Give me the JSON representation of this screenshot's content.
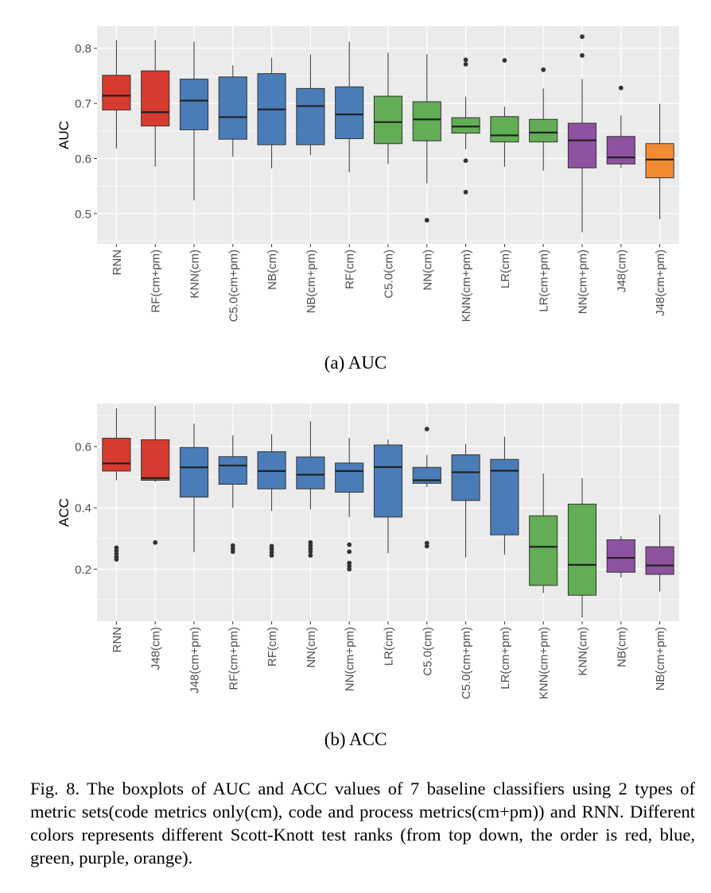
{
  "chart_data": [
    {
      "type": "boxplot",
      "ylabel": "AUC",
      "ylim": [
        0.445,
        0.84
      ],
      "yticks": [
        0.5,
        0.6,
        0.7,
        0.8
      ],
      "ytick_labels": [
        "0.5",
        "0.6",
        "0.7",
        "0.8"
      ],
      "grid": true,
      "categories": [
        "RNN",
        "RF(cm+pm)",
        "KNN(cm)",
        "C5.0(cm+pm)",
        "NB(cm)",
        "NB(cm+pm)",
        "RF(cm)",
        "C5.0(cm)",
        "NN(cm)",
        "KNN(cm+pm)",
        "LR(cm)",
        "LR(cm+pm)",
        "NN(cm+pm)",
        "J48(cm)",
        "J48(cm+pm)"
      ],
      "boxes": [
        {
          "min": 0.618,
          "q1": 0.688,
          "median": 0.714,
          "q3": 0.751,
          "max": 0.815,
          "outliers": [],
          "rank": "red"
        },
        {
          "min": 0.585,
          "q1": 0.659,
          "median": 0.684,
          "q3": 0.759,
          "max": 0.815,
          "outliers": [],
          "rank": "red"
        },
        {
          "min": 0.524,
          "q1": 0.652,
          "median": 0.705,
          "q3": 0.744,
          "max": 0.812,
          "outliers": [],
          "rank": "blue"
        },
        {
          "min": 0.603,
          "q1": 0.635,
          "median": 0.675,
          "q3": 0.748,
          "max": 0.769,
          "outliers": [],
          "rank": "blue"
        },
        {
          "min": 0.582,
          "q1": 0.625,
          "median": 0.689,
          "q3": 0.754,
          "max": 0.783,
          "outliers": [],
          "rank": "blue"
        },
        {
          "min": 0.606,
          "q1": 0.625,
          "median": 0.695,
          "q3": 0.727,
          "max": 0.789,
          "outliers": [],
          "rank": "blue"
        },
        {
          "min": 0.575,
          "q1": 0.636,
          "median": 0.68,
          "q3": 0.73,
          "max": 0.812,
          "outliers": [],
          "rank": "blue"
        },
        {
          "min": 0.59,
          "q1": 0.627,
          "median": 0.666,
          "q3": 0.713,
          "max": 0.792,
          "outliers": [],
          "rank": "green"
        },
        {
          "min": 0.555,
          "q1": 0.632,
          "median": 0.671,
          "q3": 0.703,
          "max": 0.789,
          "outliers": [
            0.488
          ],
          "rank": "green"
        },
        {
          "min": 0.617,
          "q1": 0.646,
          "median": 0.658,
          "q3": 0.674,
          "max": 0.712,
          "outliers": [
            0.779,
            0.771,
            0.596,
            0.539
          ],
          "rank": "green"
        },
        {
          "min": 0.585,
          "q1": 0.63,
          "median": 0.642,
          "q3": 0.676,
          "max": 0.694,
          "outliers": [
            0.778
          ],
          "rank": "green"
        },
        {
          "min": 0.578,
          "q1": 0.63,
          "median": 0.647,
          "q3": 0.671,
          "max": 0.727,
          "outliers": [
            0.761
          ],
          "rank": "green"
        },
        {
          "min": 0.466,
          "q1": 0.583,
          "median": 0.633,
          "q3": 0.664,
          "max": 0.744,
          "outliers": [
            0.821,
            0.787
          ],
          "rank": "purple"
        },
        {
          "min": 0.583,
          "q1": 0.59,
          "median": 0.602,
          "q3": 0.64,
          "max": 0.678,
          "outliers": [
            0.728
          ],
          "rank": "purple"
        },
        {
          "min": 0.49,
          "q1": 0.565,
          "median": 0.598,
          "q3": 0.627,
          "max": 0.699,
          "outliers": [],
          "rank": "orange"
        }
      ]
    },
    {
      "type": "boxplot",
      "ylabel": "ACC",
      "ylim": [
        0.03,
        0.74
      ],
      "yticks": [
        0.2,
        0.4,
        0.6
      ],
      "ytick_labels": [
        "0.2",
        "0.4",
        "0.6"
      ],
      "grid": true,
      "categories": [
        "RNN",
        "J48(cm)",
        "J48(cm+pm)",
        "RF(cm+pm)",
        "RF(cm)",
        "NN(cm)",
        "NN(cm+pm)",
        "LR(cm)",
        "C5.0(cm)",
        "C5.0(cm+pm)",
        "LR(cm+pm)",
        "KNN(cm+pm)",
        "KNN(cm)",
        "NB(cm)",
        "NB(cm+pm)"
      ],
      "boxes": [
        {
          "min": 0.49,
          "q1": 0.52,
          "median": 0.545,
          "q3": 0.627,
          "max": 0.725,
          "outliers": [
            0.27,
            0.26,
            0.25,
            0.24,
            0.232
          ],
          "rank": "red"
        },
        {
          "min": 0.485,
          "q1": 0.49,
          "median": 0.497,
          "q3": 0.622,
          "max": 0.732,
          "outliers": [
            0.287
          ],
          "rank": "red"
        },
        {
          "min": 0.255,
          "q1": 0.435,
          "median": 0.532,
          "q3": 0.597,
          "max": 0.675,
          "outliers": [],
          "rank": "blue"
        },
        {
          "min": 0.4,
          "q1": 0.477,
          "median": 0.538,
          "q3": 0.567,
          "max": 0.636,
          "outliers": [
            0.277,
            0.267,
            0.257
          ],
          "rank": "blue"
        },
        {
          "min": 0.39,
          "q1": 0.462,
          "median": 0.52,
          "q3": 0.583,
          "max": 0.64,
          "outliers": [
            0.275,
            0.265,
            0.255,
            0.245
          ],
          "rank": "blue"
        },
        {
          "min": 0.395,
          "q1": 0.462,
          "median": 0.508,
          "q3": 0.566,
          "max": 0.682,
          "outliers": [
            0.287,
            0.277,
            0.267,
            0.257,
            0.245
          ],
          "rank": "blue"
        },
        {
          "min": 0.37,
          "q1": 0.451,
          "median": 0.52,
          "q3": 0.546,
          "max": 0.628,
          "outliers": [
            0.28,
            0.257,
            0.22,
            0.21,
            0.2
          ],
          "rank": "blue"
        },
        {
          "min": 0.252,
          "q1": 0.37,
          "median": 0.533,
          "q3": 0.605,
          "max": 0.623,
          "outliers": [],
          "rank": "blue"
        },
        {
          "min": 0.468,
          "q1": 0.48,
          "median": 0.49,
          "q3": 0.532,
          "max": 0.572,
          "outliers": [
            0.657,
            0.285,
            0.275
          ],
          "rank": "blue"
        },
        {
          "min": 0.238,
          "q1": 0.424,
          "median": 0.516,
          "q3": 0.573,
          "max": 0.608,
          "outliers": [],
          "rank": "blue"
        },
        {
          "min": 0.248,
          "q1": 0.312,
          "median": 0.521,
          "q3": 0.558,
          "max": 0.632,
          "outliers": [],
          "rank": "blue"
        },
        {
          "min": 0.122,
          "q1": 0.147,
          "median": 0.273,
          "q3": 0.374,
          "max": 0.512,
          "outliers": [],
          "rank": "green"
        },
        {
          "min": 0.043,
          "q1": 0.115,
          "median": 0.214,
          "q3": 0.412,
          "max": 0.497,
          "outliers": [],
          "rank": "green"
        },
        {
          "min": 0.173,
          "q1": 0.19,
          "median": 0.237,
          "q3": 0.296,
          "max": 0.308,
          "outliers": [],
          "rank": "purple"
        },
        {
          "min": 0.127,
          "q1": 0.183,
          "median": 0.212,
          "q3": 0.273,
          "max": 0.378,
          "outliers": [],
          "rank": "purple"
        }
      ]
    }
  ],
  "colors": {
    "red": "#d73b2f",
    "blue": "#4a7db8",
    "green": "#62ad55",
    "purple": "#8e52a0",
    "orange": "#f28a31",
    "panel": "#ebebeb",
    "grid": "#ffffff"
  },
  "captions": {
    "a": "(a)  AUC",
    "b": "(b)  ACC",
    "figure": "Fig. 8.  The boxplots of AUC and ACC values of 7 baseline classifiers using 2 types of metric sets(code metrics only(cm), code and process metrics(cm+pm)) and RNN. Different colors represents different Scott-Knott test ranks (from top down, the order is red, blue, green, purple, orange)."
  }
}
